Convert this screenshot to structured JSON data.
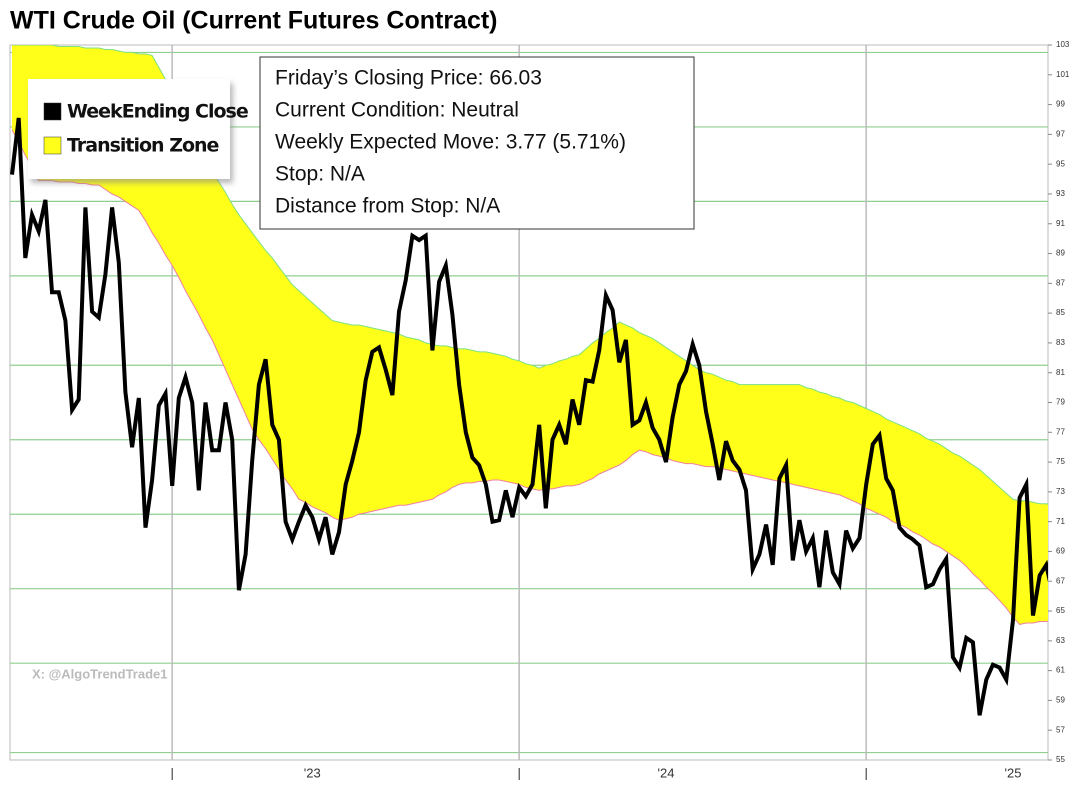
{
  "chart_data": {
    "type": "line",
    "title": "WTI Crude Oil (Current Futures Contract)",
    "watermark": "X: @AlgoTrendTrade1",
    "annotations": [
      "Friday’s Closing Price: 66.03",
      "Current Condition: Neutral",
      "Weekly Expected Move: 3.77 (5.71%)",
      "Stop: N/A",
      "Distance from Stop: N/A"
    ],
    "categories": [
      null,
      null,
      null,
      null,
      null,
      null,
      null,
      null,
      null,
      null,
      null,
      null,
      null,
      null,
      null,
      null,
      null,
      null,
      null,
      null,
      null,
      null,
      null,
      null,
      "|",
      null,
      null,
      null,
      null,
      null,
      null,
      null,
      null,
      null,
      null,
      null,
      null,
      null,
      null,
      null,
      null,
      null,
      null,
      null,
      null,
      "'23",
      null,
      null,
      null,
      null,
      null,
      null,
      null,
      null,
      null,
      null,
      null,
      null,
      null,
      null,
      null,
      null,
      null,
      null,
      null,
      null,
      null,
      null,
      null,
      null,
      null,
      null,
      null,
      null,
      null,
      null,
      "|",
      null,
      null,
      null,
      null,
      null,
      null,
      null,
      null,
      null,
      null,
      null,
      null,
      null,
      null,
      null,
      null,
      null,
      null,
      null,
      null,
      null,
      "'24",
      null,
      null,
      null,
      null,
      null,
      null,
      null,
      null,
      null,
      null,
      null,
      null,
      null,
      null,
      null,
      null,
      null,
      null,
      null,
      null,
      null,
      null,
      null,
      null,
      null,
      null,
      null,
      null,
      null,
      "|",
      null,
      null,
      null,
      null,
      null,
      null,
      null,
      null,
      null,
      null,
      null,
      null,
      null,
      null,
      null,
      null,
      null,
      null,
      null,
      null,
      null,
      "'25",
      null,
      null,
      null,
      null,
      null,
      null
    ],
    "series": [
      {
        "name": "WeekEnding Close",
        "color": "#000000",
        "values": [
          94.3,
          98.1,
          88.7,
          91.6,
          90.5,
          92.6,
          86.4,
          86.4,
          84.5,
          78.5,
          79.2,
          92.1,
          85.1,
          84.7,
          87.6,
          92.1,
          88.4,
          79.7,
          76.0,
          79.3,
          70.6,
          73.8,
          78.8,
          79.6,
          73.4,
          79.3,
          80.7,
          79.0,
          73.1,
          79.0,
          75.8,
          75.8,
          79.0,
          76.5,
          66.4,
          68.8,
          75.1,
          80.2,
          81.9,
          77.5,
          76.5,
          71.0,
          69.8,
          71.0,
          72.1,
          71.3,
          69.8,
          71.3,
          68.8,
          70.3,
          73.5,
          75.1,
          77.0,
          80.5,
          82.4,
          82.7,
          81.2,
          79.5,
          85.1,
          87.2,
          90.2,
          89.9,
          90.2,
          82.5,
          87.1,
          88.2,
          84.9,
          80.2,
          77.0,
          75.3,
          74.8,
          73.5,
          71.0,
          71.1,
          73.1,
          71.3,
          73.3,
          72.7,
          73.5,
          77.5,
          71.9,
          76.5,
          77.5,
          76.2,
          79.2,
          77.5,
          80.5,
          80.4,
          82.5,
          86.2,
          85.2,
          81.7,
          83.2,
          77.5,
          77.8,
          79.0,
          77.3,
          76.5,
          75.0,
          78.0,
          80.2,
          81.1,
          82.9,
          81.5,
          78.4,
          76.2,
          73.8,
          76.4,
          75.1,
          74.5,
          73.1,
          67.8,
          68.8,
          70.8,
          68.1,
          73.9,
          74.8,
          68.4,
          71.1,
          69.0,
          69.9,
          66.6,
          70.4,
          67.6,
          66.8,
          70.4,
          69.2,
          69.9,
          73.5,
          76.2,
          76.8,
          73.9,
          73.1,
          70.6,
          70.1,
          69.8,
          69.4,
          66.6,
          66.8,
          67.8,
          68.5,
          61.9,
          61.2,
          63.2,
          62.9,
          58.0,
          60.4,
          61.4,
          61.2,
          60.4,
          64.4,
          72.6,
          73.5,
          64.7,
          67.4,
          68.1,
          66.03
        ]
      },
      {
        "name": "Transition Zone",
        "type": "band",
        "color": "#ffff1a",
        "upper_color": "#7fe07f",
        "lower_color": "#f080a0",
        "upper": [
          103,
          103,
          103,
          103,
          103,
          103,
          103,
          102.9,
          102.9,
          102.9,
          102.9,
          102.8,
          102.8,
          102.8,
          102.7,
          102.7,
          102.6,
          102.5,
          102.5,
          102.4,
          102.4,
          102.3,
          101.5,
          100.7,
          99.8,
          98.8,
          97.9,
          96.9,
          96.0,
          95.3,
          94.5,
          93.8,
          93.1,
          92.3,
          91.6,
          91.0,
          90.4,
          89.8,
          89.2,
          88.7,
          88.1,
          87.5,
          86.9,
          86.5,
          86.1,
          85.7,
          85.3,
          84.9,
          84.5,
          84.4,
          84.3,
          84.2,
          84.2,
          84.1,
          84.0,
          83.9,
          83.8,
          83.7,
          83.6,
          83.4,
          83.3,
          83.2,
          83.0,
          82.9,
          82.8,
          82.8,
          82.7,
          82.6,
          82.6,
          82.5,
          82.4,
          82.4,
          82.3,
          82.2,
          82.1,
          81.9,
          81.8,
          81.6,
          81.5,
          81.3,
          81.5,
          81.6,
          81.8,
          81.9,
          82.1,
          82.2,
          82.6,
          83.0,
          83.3,
          83.7,
          84.0,
          84.4,
          84.2,
          84.0,
          83.7,
          83.5,
          83.3,
          83.0,
          82.7,
          82.4,
          82.1,
          81.8,
          81.5,
          81.2,
          81.0,
          80.9,
          80.7,
          80.5,
          80.4,
          80.2,
          80.2,
          80.2,
          80.2,
          80.2,
          80.2,
          80.2,
          80.2,
          80.2,
          80.2,
          80.0,
          79.9,
          79.7,
          79.6,
          79.4,
          79.3,
          79.1,
          79.0,
          78.8,
          78.6,
          78.4,
          78.2,
          77.9,
          77.7,
          77.5,
          77.3,
          77.1,
          76.9,
          76.6,
          76.4,
          76.2,
          75.9,
          75.6,
          75.4,
          75.1,
          74.8,
          74.5,
          74.1,
          73.7,
          73.3,
          72.9,
          72.5,
          72.4,
          72.4,
          72.3,
          72.2,
          72.2,
          72.1
        ],
        "lower": [
          97.3,
          96.5,
          95.6,
          94.8,
          93.9,
          93.9,
          93.9,
          93.8,
          93.8,
          93.8,
          93.7,
          93.7,
          93.6,
          93.6,
          93.3,
          93.0,
          92.8,
          92.5,
          92.2,
          91.9,
          91.2,
          90.4,
          89.7,
          88.9,
          88.2,
          87.4,
          86.5,
          85.7,
          84.9,
          84.0,
          83.2,
          82.2,
          81.2,
          80.2,
          79.2,
          78.2,
          77.2,
          76.5,
          75.9,
          75.2,
          74.5,
          73.8,
          73.2,
          72.5,
          72.3,
          72.0,
          71.8,
          71.6,
          71.3,
          71.1,
          71.2,
          71.3,
          71.5,
          71.6,
          71.7,
          71.8,
          71.9,
          72.0,
          72.1,
          72.1,
          72.2,
          72.3,
          72.4,
          72.5,
          72.8,
          73.0,
          73.3,
          73.5,
          73.6,
          73.6,
          73.7,
          73.7,
          73.8,
          73.8,
          73.7,
          73.6,
          73.5,
          73.3,
          73.2,
          73.1,
          73.2,
          73.2,
          73.3,
          73.4,
          73.4,
          73.5,
          73.7,
          73.9,
          74.2,
          74.4,
          74.6,
          74.8,
          75.1,
          75.5,
          75.8,
          75.7,
          75.5,
          75.4,
          75.3,
          75.1,
          75.0,
          74.9,
          74.9,
          74.8,
          74.7,
          74.7,
          74.6,
          74.5,
          74.4,
          74.3,
          74.2,
          74.1,
          74.0,
          73.9,
          73.8,
          73.7,
          73.6,
          73.5,
          73.4,
          73.3,
          73.2,
          73.1,
          73.0,
          72.9,
          72.8,
          72.6,
          72.4,
          72.2,
          71.9,
          71.7,
          71.5,
          71.3,
          71.0,
          70.8,
          70.6,
          70.3,
          70.1,
          69.8,
          69.5,
          69.3,
          69.0,
          68.7,
          68.4,
          68.0,
          67.5,
          67.1,
          66.6,
          66.2,
          65.7,
          65.2,
          64.6,
          64.1,
          64.2,
          64.2,
          64.3,
          64.3,
          64.4
        ]
      }
    ],
    "ylim": [
      55,
      103
    ],
    "yticks": [
      55,
      57,
      59,
      61,
      63,
      65,
      67,
      69,
      71,
      73,
      75,
      77,
      79,
      81,
      83,
      85,
      87,
      89,
      91,
      93,
      95,
      97,
      99,
      101,
      103
    ],
    "grid_lines": [
      55.5,
      61.5,
      66.5,
      71.5,
      76.5,
      81.5,
      87.5,
      92.5,
      97.5,
      102.5
    ],
    "grid_color": "#8fcf8f",
    "year_line_color": "#bbbbbb",
    "y_axis_side": "right",
    "legend": "upper left"
  }
}
